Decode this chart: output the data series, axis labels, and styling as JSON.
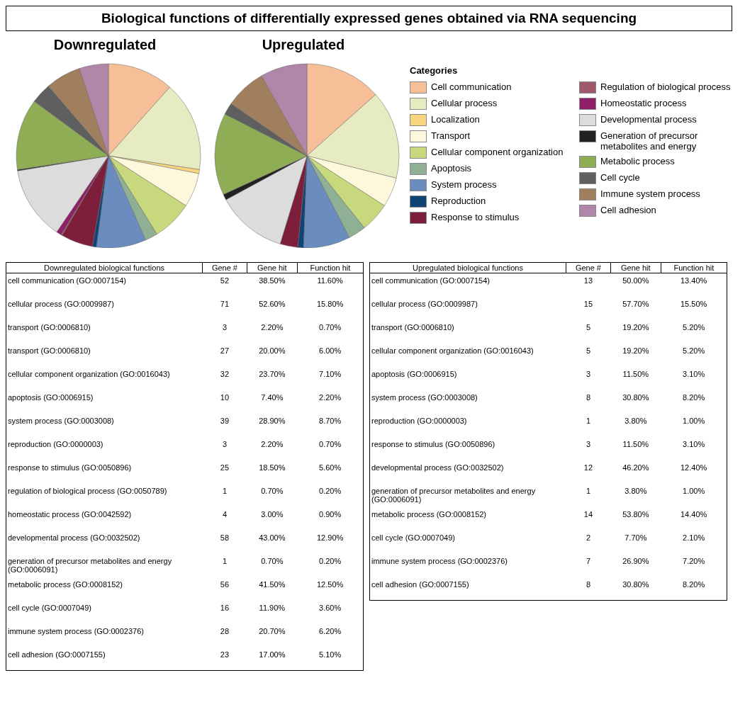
{
  "chart_data": [
    {
      "type": "pie",
      "title": "Biological functions of differentially expressed genes obtained via RNA sequencing",
      "subtitle": "Downregulated",
      "legend": "right",
      "legend_title": "Categories",
      "categories": [
        "Cell communication",
        "Cellular process",
        "Localization",
        "Transport",
        "Cellular component organization",
        "Apoptosis",
        "System process",
        "Reproduction",
        "Response to stimulus",
        "Regulation of biological process",
        "Homeostatic process",
        "Developmental process",
        "Generation of precursor metabolites and energy",
        "Metabolic process",
        "Cell cycle",
        "Immune system process",
        "Cell adhesion"
      ],
      "values": [
        11.6,
        15.8,
        0.7,
        6.0,
        7.1,
        2.2,
        8.7,
        0.7,
        5.6,
        0.2,
        0.9,
        12.9,
        0.2,
        12.5,
        3.6,
        6.2,
        5.1
      ],
      "colors": [
        "#f6bf98",
        "#e6ebc2",
        "#f8d57e",
        "#fdf8dc",
        "#c8d97d",
        "#8fb095",
        "#6b8cbf",
        "#0f4475",
        "#7d1f3b",
        "#9e5a6a",
        "#8e1f68",
        "#dcdcdc",
        "#222222",
        "#8fad55",
        "#5f5f5f",
        "#a07f5f",
        "#b087a8"
      ]
    },
    {
      "type": "pie",
      "title": "Upregulated",
      "categories": [
        null,
        null,
        null,
        null,
        null,
        null,
        null,
        null,
        null,
        null,
        null,
        null,
        null,
        null
      ],
      "values": [
        13.4,
        15.5,
        5.2,
        5.2,
        3.1,
        8.2,
        1.0,
        3.1,
        12.4,
        1.0,
        14.4,
        2.1,
        7.2,
        8.2
      ],
      "colors": [
        "#f6bf98",
        "#e6ebc2",
        "#fdf8dc",
        "#c8d97d",
        "#8fb095",
        "#6b8cbf",
        "#0f4475",
        "#7d1f3b",
        "#dcdcdc",
        "#222222",
        "#8fad55",
        "#5f5f5f",
        "#a07f5f",
        "#b087a8"
      ]
    },
    {
      "type": "other",
      "ylabel": "Downregulated biological functions",
      "data_labels": true,
      "categories": [
        "cell communication (GO:0007154)",
        "cellular process (GO:0009987)",
        "transport (GO:0006810)",
        "transport (GO:0006810)",
        "cellular component organization (GO:0016043)",
        "apoptosis (GO:0006915)",
        "system process (GO:0003008)",
        "reproduction (GO:0000003)",
        "response to stimulus (GO:0050896)",
        "regulation of biological process (GO:0050789)",
        "homeostatic process (GO:0042592)",
        "developmental process (GO:0032502)",
        "generation of precursor metabolites and energy (GO:0006091)",
        "metabolic process (GO:0008152)",
        "cell cycle (GO:0007049)",
        "immune system process (GO:0002376)",
        "cell adhesion (GO:0007155)"
      ],
      "series": [
        {
          "name": "Gene #",
          "values": [
            52,
            71,
            3,
            27,
            32,
            10,
            39,
            3,
            25,
            1,
            4,
            58,
            1,
            56,
            16,
            28,
            23
          ]
        },
        {
          "name": "Gene hit",
          "values": [
            38.5,
            52.6,
            2.2,
            20.0,
            23.7,
            7.4,
            28.9,
            2.2,
            18.5,
            0.7,
            3.0,
            43.0,
            0.7,
            41.5,
            11.9,
            20.7,
            17.0
          ],
          "value_labels": [
            "38.50%",
            "52.60%",
            "2.20%",
            "20.00%",
            "23.70%",
            "7.40%",
            "28.90%",
            "2.20%",
            "18.50%",
            "0.70%",
            "3.00%",
            "43.00%",
            "0.70%",
            "41.50%",
            "11.90%",
            "20.70%",
            "17.00%"
          ]
        },
        {
          "name": "Function hit",
          "values": [
            11.6,
            15.8,
            0.7,
            6.0,
            7.1,
            2.2,
            8.7,
            0.7,
            5.6,
            0.2,
            0.9,
            12.9,
            0.2,
            12.5,
            3.6,
            6.2,
            5.1
          ],
          "value_labels": [
            "11.60%",
            "15.80%",
            "0.70%",
            "6.00%",
            "7.10%",
            "2.20%",
            "8.70%",
            "0.70%",
            "5.60%",
            "0.20%",
            "0.90%",
            "12.90%",
            "0.20%",
            "12.50%",
            "3.60%",
            "6.20%",
            "5.10%"
          ]
        }
      ]
    },
    {
      "type": "other",
      "ylabel": "Upregulated biological functions",
      "data_labels": true,
      "categories": [
        "cell communication (GO:0007154)",
        "cellular process (GO:0009987)",
        "transport (GO:0006810)",
        "cellular component organization (GO:0016043)",
        "apoptosis (GO:0006915)",
        "system process (GO:0003008)",
        "reproduction (GO:0000003)",
        "response to stimulus (GO:0050896)",
        "developmental process (GO:0032502)",
        "generation of precursor metabolites and energy (GO:0006091)",
        "metabolic process (GO:0008152)",
        "cell cycle (GO:0007049)",
        "immune system process (GO:0002376)",
        "cell adhesion (GO:0007155)"
      ],
      "series": [
        {
          "name": "Gene #",
          "values": [
            13,
            15,
            5,
            5,
            3,
            8,
            1,
            3,
            12,
            1,
            14,
            2,
            7,
            8
          ]
        },
        {
          "name": "Gene hit",
          "values": [
            50.0,
            57.7,
            19.2,
            19.2,
            11.5,
            30.8,
            3.8,
            11.5,
            46.2,
            3.8,
            53.8,
            7.7,
            26.9,
            30.8
          ],
          "value_labels": [
            "50.00%",
            "57.70%",
            "19.20%",
            "19.20%",
            "11.50%",
            "30.80%",
            "3.80%",
            "11.50%",
            "46.20%",
            "3.80%",
            "53.80%",
            "7.70%",
            "26.90%",
            "30.80%"
          ]
        },
        {
          "name": "Function hit",
          "values": [
            13.4,
            15.5,
            5.2,
            5.2,
            3.1,
            8.2,
            1.0,
            3.1,
            12.4,
            1.0,
            14.4,
            2.1,
            7.2,
            8.2
          ],
          "value_labels": [
            "13.40%",
            "15.50%",
            "5.20%",
            "5.20%",
            "3.10%",
            "8.20%",
            "1.00%",
            "3.10%",
            "12.40%",
            "1.00%",
            "14.40%",
            "2.10%",
            "7.20%",
            "8.20%"
          ]
        }
      ]
    }
  ]
}
